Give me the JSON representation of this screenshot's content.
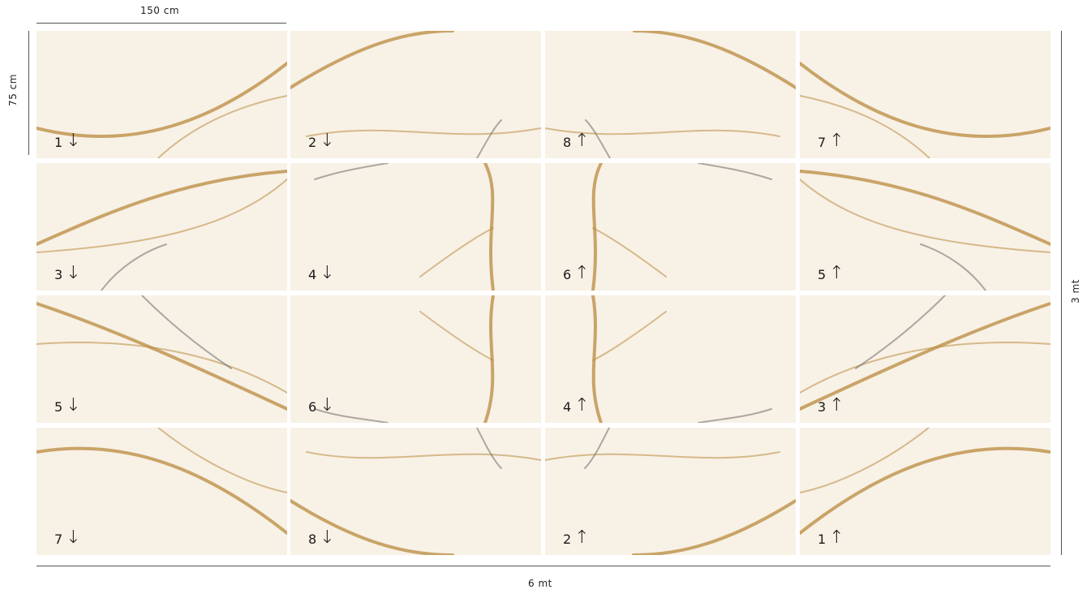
{
  "dimensions": {
    "top": "150 cm",
    "left": "75 cm",
    "right": "3 mt",
    "bottom": "6 mt"
  },
  "tiles": [
    {
      "num": "1",
      "arrow": "↓"
    },
    {
      "num": "2",
      "arrow": "↓"
    },
    {
      "num": "8",
      "arrow": "↑"
    },
    {
      "num": "7",
      "arrow": "↑"
    },
    {
      "num": "3",
      "arrow": "↓"
    },
    {
      "num": "4",
      "arrow": "↓"
    },
    {
      "num": "6",
      "arrow": "↑"
    },
    {
      "num": "5",
      "arrow": "↑"
    },
    {
      "num": "5",
      "arrow": "↓"
    },
    {
      "num": "6",
      "arrow": "↓"
    },
    {
      "num": "4",
      "arrow": "↑"
    },
    {
      "num": "3",
      "arrow": "↑"
    },
    {
      "num": "7",
      "arrow": "↓"
    },
    {
      "num": "8",
      "arrow": "↓"
    },
    {
      "num": "2",
      "arrow": "↑"
    },
    {
      "num": "1",
      "arrow": "↑"
    }
  ],
  "colors": {
    "marble": "#f8f1e6",
    "vein_gold": "#b98a3e",
    "vein_grey": "#6d6a66"
  }
}
